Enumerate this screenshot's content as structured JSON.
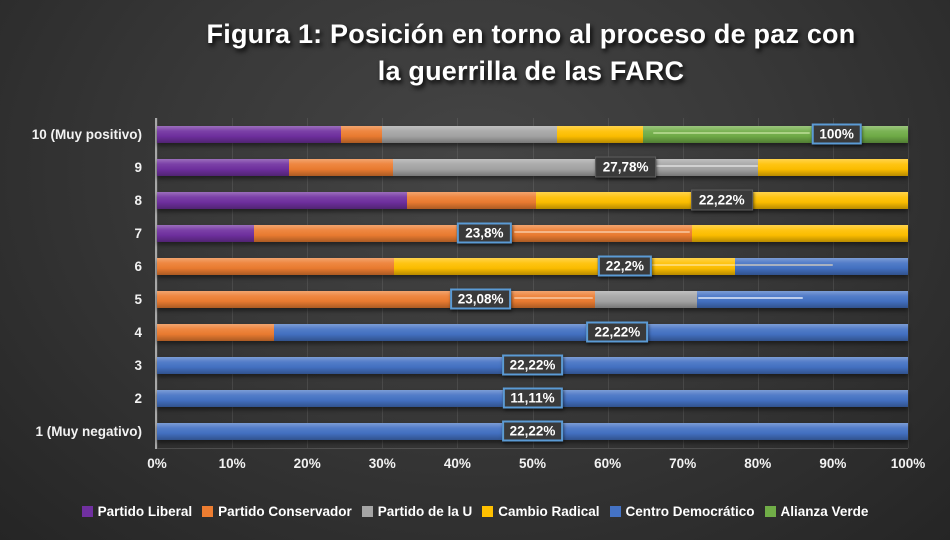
{
  "chart_data": {
    "type": "bar",
    "subtype": "horizontal-100pct-stacked",
    "title": "Figura 1: Posición en torno al proceso de paz con la guerrilla de las FARC",
    "title_line1": "Figura 1: Posición en torno al proceso de paz con",
    "title_line2": "la guerrilla de las FARC",
    "xlabel": "",
    "ylabel": "",
    "x_axis": {
      "min": 0,
      "max": 100,
      "ticks": [
        "0%",
        "10%",
        "20%",
        "30%",
        "40%",
        "50%",
        "60%",
        "70%",
        "80%",
        "90%",
        "100%"
      ]
    },
    "grid": true,
    "legend_position": "bottom",
    "series": [
      {
        "key": "partido_liberal",
        "label": "Partido Liberal",
        "color": "#7030A0"
      },
      {
        "key": "partido_conservador",
        "label": "Partido Conservador",
        "color": "#ED7D31"
      },
      {
        "key": "partido_de_la_u",
        "label": "Partido de la U",
        "color": "#A5A5A5"
      },
      {
        "key": "cambio_radical",
        "label": "Cambio Radical",
        "color": "#FFC000"
      },
      {
        "key": "centro_democratico",
        "label": "Centro Democrático",
        "color": "#4472C4"
      },
      {
        "key": "alianza_verde",
        "label": "Alianza Verde",
        "color": "#70AD47"
      }
    ],
    "rows": [
      {
        "category": "10 (Muy positivo)",
        "segments": [
          {
            "series": "partido_liberal",
            "pct": 24.5
          },
          {
            "series": "partido_conservador",
            "pct": 5.4
          },
          {
            "series": "partido_de_la_u",
            "pct": 23.3
          },
          {
            "series": "cambio_radical",
            "pct": 11.5
          },
          {
            "series": "alianza_verde",
            "pct": 35.3
          }
        ],
        "leaders": [
          {
            "from": 66,
            "to": 87,
            "color": "#b9dc94"
          }
        ],
        "label": {
          "text": "100%",
          "x_pct": 90.5,
          "outlined": true
        }
      },
      {
        "category": "9",
        "segments": [
          {
            "series": "partido_liberal",
            "pct": 17.6
          },
          {
            "series": "partido_conservador",
            "pct": 13.8
          },
          {
            "series": "partido_de_la_u",
            "pct": 48.6
          },
          {
            "series": "cambio_radical",
            "pct": 20.0
          }
        ],
        "leaders": [
          {
            "from": 66.5,
            "to": 80,
            "color": "#dcdcdc"
          }
        ],
        "label": {
          "text": "27,78%",
          "x_pct": 62.4,
          "outlined": false
        }
      },
      {
        "category": "8",
        "segments": [
          {
            "series": "partido_liberal",
            "pct": 33.3
          },
          {
            "series": "partido_conservador",
            "pct": 17.2
          },
          {
            "series": "cambio_radical",
            "pct": 49.5
          }
        ],
        "leaders": [],
        "label": {
          "text": "22,22%",
          "x_pct": 75.2,
          "outlined": false
        }
      },
      {
        "category": "7",
        "segments": [
          {
            "series": "partido_liberal",
            "pct": 12.9
          },
          {
            "series": "partido_conservador",
            "pct": 58.4
          },
          {
            "series": "cambio_radical",
            "pct": 28.7
          }
        ],
        "leaders": [
          {
            "from": 47.5,
            "to": 71,
            "color": "#f8c49c"
          }
        ],
        "label": {
          "text": "23,8%",
          "x_pct": 43.6,
          "outlined": true
        }
      },
      {
        "category": "6",
        "segments": [
          {
            "series": "partido_conservador",
            "pct": 31.5
          },
          {
            "series": "cambio_radical",
            "pct": 45.4
          },
          {
            "series": "centro_democratico",
            "pct": 23.1
          }
        ],
        "leaders": [
          {
            "from": 65.5,
            "to": 77,
            "color": "#ffdf80"
          },
          {
            "from": 77,
            "to": 90,
            "color": "#bfbfbf"
          }
        ],
        "label": {
          "text": "22,2%",
          "x_pct": 62.3,
          "outlined": true
        }
      },
      {
        "category": "5",
        "segments": [
          {
            "series": "partido_conservador",
            "pct": 58.3
          },
          {
            "series": "partido_de_la_u",
            "pct": 13.6
          },
          {
            "series": "centro_democratico",
            "pct": 28.1
          }
        ],
        "leaders": [
          {
            "from": 47.5,
            "to": 58,
            "color": "#f8c49c"
          },
          {
            "from": 72,
            "to": 86,
            "color": "#d7e2f5"
          }
        ],
        "label": {
          "text": "23,08%",
          "x_pct": 43.1,
          "outlined": true
        }
      },
      {
        "category": "4",
        "segments": [
          {
            "series": "partido_conservador",
            "pct": 15.6
          },
          {
            "series": "centro_democratico",
            "pct": 84.4
          }
        ],
        "leaders": [],
        "label": {
          "text": "22,22%",
          "x_pct": 61.3,
          "outlined": true
        }
      },
      {
        "category": "3",
        "segments": [
          {
            "series": "centro_democratico",
            "pct": 100
          }
        ],
        "leaders": [],
        "label": {
          "text": "22,22%",
          "x_pct": 50,
          "outlined": true
        }
      },
      {
        "category": "2",
        "segments": [
          {
            "series": "centro_democratico",
            "pct": 100
          }
        ],
        "leaders": [],
        "label": {
          "text": "11,11%",
          "x_pct": 50,
          "outlined": true
        }
      },
      {
        "category": "1 (Muy negativo)",
        "segments": [
          {
            "series": "centro_democratico",
            "pct": 100
          }
        ],
        "leaders": [],
        "label": {
          "text": "22,22%",
          "x_pct": 50,
          "outlined": true
        }
      }
    ],
    "colors": {
      "label_box_bg": "#3A3A3A",
      "label_box_border": "#5B9BD5",
      "axis_text": "#F2F2F2",
      "title_text": "#FFFFFF"
    }
  }
}
